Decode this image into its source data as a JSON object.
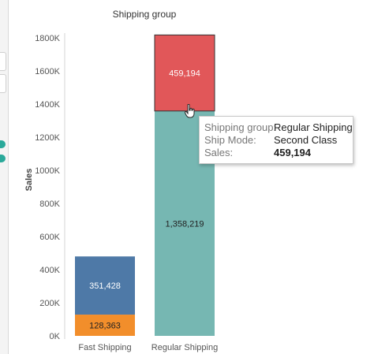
{
  "chart_data": {
    "type": "bar",
    "stacked": true,
    "title": "Shipping group",
    "xlabel": "",
    "ylabel": "Sales",
    "ylim": [
      0,
      1800000
    ],
    "yticks": [
      {
        "value": 0,
        "label": "0K"
      },
      {
        "value": 200000,
        "label": "200K"
      },
      {
        "value": 400000,
        "label": "400K"
      },
      {
        "value": 600000,
        "label": "600K"
      },
      {
        "value": 800000,
        "label": "800K"
      },
      {
        "value": 1000000,
        "label": "1000K"
      },
      {
        "value": 1200000,
        "label": "1200K"
      },
      {
        "value": 1400000,
        "label": "1400K"
      },
      {
        "value": 1600000,
        "label": "1600K"
      },
      {
        "value": 1800000,
        "label": "1800K"
      }
    ],
    "categories": [
      "Fast Shipping",
      "Regular Shipping"
    ],
    "bars": [
      {
        "category": "Fast Shipping",
        "segments": [
          {
            "value": 128363,
            "label": "128,363",
            "color": "#f28e2b",
            "text_color": "#222222"
          },
          {
            "value": 351428,
            "label": "351,428",
            "color": "#4e79a7",
            "text_color": "#ffffff"
          }
        ]
      },
      {
        "category": "Regular Shipping",
        "segments": [
          {
            "value": 1358219,
            "label": "1,358,219",
            "color": "#76b7b2",
            "text_color": "#222222"
          },
          {
            "value": 459194,
            "label": "459,194",
            "color": "#e15759",
            "text_color": "#ffffff",
            "highlighted": true
          }
        ]
      }
    ],
    "grid": false
  },
  "tooltip": {
    "rows": [
      {
        "key": "Shipping group:",
        "value": "Regular Shipping"
      },
      {
        "key": "Ship Mode:",
        "value": "Second Class"
      },
      {
        "key": "Sales:",
        "value": "459,194"
      }
    ]
  },
  "colors": {
    "axis_line": "#d4d4d4",
    "highlight_border": "#333333",
    "strip_dot": "#2aa99a"
  },
  "icons": {
    "cursor": "hand-pointer-icon"
  }
}
